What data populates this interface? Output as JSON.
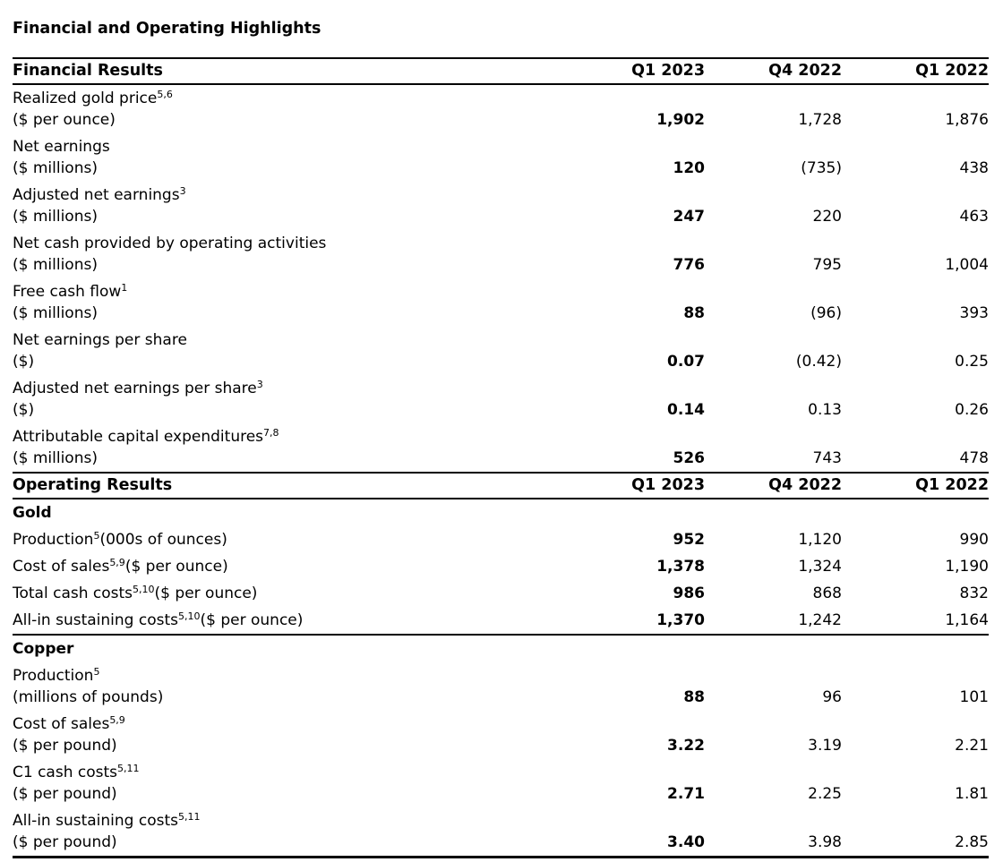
{
  "title": "Financial and Operating Highlights",
  "columns": [
    "Q1 2023",
    "Q4 2022",
    "Q1 2022"
  ],
  "financial": {
    "header": "Financial Results",
    "rows": [
      {
        "pre": "Realized gold price",
        "sup": "5,6",
        "post": "",
        "unit": "($ per ounce)",
        "v0": "1,902",
        "v1": "1,728",
        "v2": "1,876"
      },
      {
        "pre": "Net earnings",
        "sup": "",
        "post": "",
        "unit": "($ millions)",
        "v0": "120",
        "v1": "(735)",
        "v2": "438"
      },
      {
        "pre": "Adjusted net earnings",
        "sup": "3",
        "post": "",
        "unit": "($ millions)",
        "v0": "247",
        "v1": "220",
        "v2": "463"
      },
      {
        "pre": "Net cash provided by operating activities",
        "sup": "",
        "post": "",
        "unit": "($ millions)",
        "v0": "776",
        "v1": "795",
        "v2": "1,004"
      },
      {
        "pre": "Free cash flow",
        "sup": "1",
        "post": "",
        "unit": "($ millions)",
        "v0": "88",
        "v1": "(96)",
        "v2": "393"
      },
      {
        "pre": "Net earnings per share",
        "sup": "",
        "post": "",
        "unit": "($)",
        "v0": "0.07",
        "v1": "(0.42)",
        "v2": "0.25"
      },
      {
        "pre": "Adjusted net earnings per share",
        "sup": "3",
        "post": "",
        "unit": "($)",
        "v0": "0.14",
        "v1": "0.13",
        "v2": "0.26"
      },
      {
        "pre": "Attributable capital expenditures",
        "sup": "7,8",
        "post": "",
        "unit": "($ millions)",
        "v0": "526",
        "v1": "743",
        "v2": "478"
      }
    ]
  },
  "operating": {
    "header": "Operating Results",
    "gold": {
      "header": "Gold",
      "rows": [
        {
          "pre": "Production",
          "sup": "5",
          "post": "(000s of ounces)",
          "unit": "",
          "v0": "952",
          "v1": "1,120",
          "v2": "990"
        },
        {
          "pre": "Cost of sales",
          "sup": "5,9",
          "post": "($ per ounce)",
          "unit": "",
          "v0": "1,378",
          "v1": "1,324",
          "v2": "1,190"
        },
        {
          "pre": "Total cash costs",
          "sup": "5,10",
          "post": "($ per ounce)",
          "unit": "",
          "v0": "986",
          "v1": "868",
          "v2": "832"
        },
        {
          "pre": "All-in sustaining costs",
          "sup": "5,10",
          "post": "($ per ounce)",
          "unit": "",
          "v0": "1,370",
          "v1": "1,242",
          "v2": "1,164"
        }
      ]
    },
    "copper": {
      "header": "Copper",
      "rows": [
        {
          "pre": "Production",
          "sup": "5",
          "post": "",
          "unit": "(millions of pounds)",
          "v0": "88",
          "v1": "96",
          "v2": "101"
        },
        {
          "pre": "Cost of sales",
          "sup": "5,9",
          "post": "",
          "unit": "($ per pound)",
          "v0": "3.22",
          "v1": "3.19",
          "v2": "2.21"
        },
        {
          "pre": "C1 cash costs",
          "sup": "5,11",
          "post": "",
          "unit": "($ per pound)",
          "v0": "2.71",
          "v1": "2.25",
          "v2": "1.81"
        },
        {
          "pre": "All-in sustaining costs",
          "sup": "5,11",
          "post": "",
          "unit": "($ per pound)",
          "v0": "3.40",
          "v1": "3.98",
          "v2": "2.85"
        }
      ]
    }
  }
}
